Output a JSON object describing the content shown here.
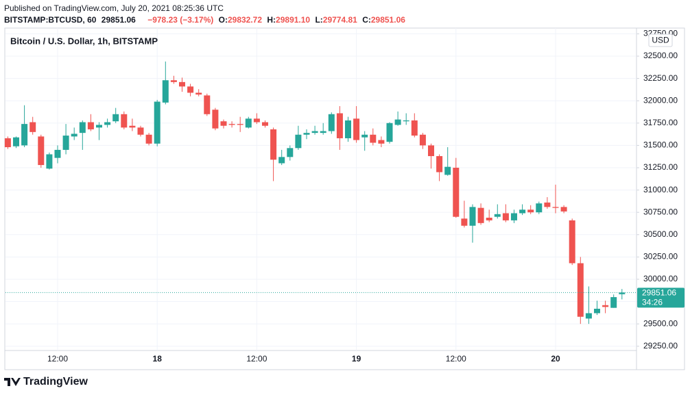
{
  "header": {
    "published": "Published on TradingView.com, July 20, 2021 08:25:36 UTC",
    "symbol": "BITSTAMP:BTCUSD, 60",
    "last": "29851.06",
    "change": "−978.23 (−3.17%)",
    "open_label": "O:",
    "open": "29832.72",
    "high_label": "H:",
    "high": "29891.10",
    "low_label": "L:",
    "low": "29774.81",
    "close_label": "C:",
    "close": "29851.06"
  },
  "footer": {
    "brand": "TradingView"
  },
  "chart_data": {
    "type": "candlestick",
    "title": "Bitcoin / U.S. Dollar, 1h, BITSTAMP",
    "currency": "USD",
    "up_color": "#26a69a",
    "down_color": "#ef5350",
    "grid": true,
    "last_price": 29851.06,
    "countdown": "34:26",
    "categories": [
      null,
      null,
      null,
      null,
      null,
      null,
      "12:00",
      null,
      null,
      null,
      null,
      null,
      null,
      null,
      null,
      null,
      null,
      null,
      "18",
      null,
      null,
      null,
      null,
      null,
      null,
      null,
      null,
      null,
      null,
      null,
      "12:00",
      null,
      null,
      null,
      null,
      null,
      null,
      null,
      null,
      null,
      null,
      null,
      "19",
      null,
      null,
      null,
      null,
      null,
      null,
      null,
      null,
      null,
      null,
      null,
      "12:00",
      null,
      null,
      null,
      null,
      null,
      null,
      null,
      null,
      null,
      null,
      null,
      "20",
      null,
      null,
      null,
      null,
      null,
      null,
      null,
      null
    ],
    "open": [
      31580,
      31490,
      31500,
      31760,
      31600,
      31240,
      31360,
      31450,
      31600,
      31640,
      31760,
      31700,
      31730,
      31770,
      31850,
      31720,
      31700,
      31620,
      31520,
      31980,
      32230,
      32210,
      32160,
      32090,
      32060,
      31900,
      31770,
      31740,
      31740,
      31700,
      31800,
      31760,
      31680,
      31300,
      31370,
      31470,
      31620,
      31640,
      31640,
      31660,
      31860,
      31580,
      31800,
      31590,
      31620,
      31560,
      31540,
      31730,
      31770,
      31780,
      31620,
      31500,
      31380,
      31170,
      31250,
      30680,
      30600,
      30800,
      30690,
      30700,
      30740,
      30660,
      30740,
      30780,
      30750,
      30860,
      30810,
      30810,
      30660,
      30180,
      29560,
      29620,
      29710,
      29680,
      29832.72
    ],
    "high": [
      31600,
      31600,
      31950,
      31820,
      31620,
      31420,
      31500,
      31740,
      31700,
      31780,
      31850,
      31760,
      31800,
      31920,
      31880,
      31800,
      31720,
      31640,
      32010,
      32440,
      32280,
      32260,
      32190,
      32130,
      32080,
      31920,
      31790,
      31770,
      31820,
      31820,
      31860,
      31780,
      31700,
      31450,
      31500,
      31720,
      31680,
      31720,
      31750,
      31870,
      31940,
      31820,
      31940,
      31660,
      31690,
      31600,
      31760,
      31880,
      31860,
      31860,
      31640,
      31520,
      31400,
      31480,
      31360,
      30880,
      30840,
      30850,
      30780,
      30840,
      30840,
      30780,
      30840,
      30830,
      30870,
      30920,
      31060,
      30830,
      30680,
      30250,
      29920,
      29760,
      29760,
      29830,
      29891.1
    ],
    "low": [
      31460,
      31470,
      31480,
      31620,
      31250,
      31230,
      31300,
      31400,
      31560,
      31450,
      31660,
      31560,
      31700,
      31750,
      31680,
      31660,
      31600,
      31500,
      31490,
      31960,
      32190,
      32100,
      32050,
      32050,
      31830,
      31670,
      31690,
      31700,
      31650,
      31690,
      31740,
      31700,
      31100,
      31280,
      31330,
      31450,
      31570,
      31620,
      31620,
      31630,
      31450,
      31540,
      31530,
      31440,
      31500,
      31480,
      31520,
      31720,
      31730,
      31590,
      31460,
      31240,
      31100,
      31160,
      30690,
      30580,
      30410,
      30610,
      30640,
      30680,
      30640,
      30630,
      30720,
      30730,
      30730,
      30790,
      30740,
      30740,
      30160,
      29500,
      29500,
      29600,
      29620,
      29680,
      29774.81
    ],
    "close": [
      31480,
      31590,
      31740,
      31650,
      31280,
      31400,
      31450,
      31610,
      31630,
      31760,
      31680,
      31730,
      31760,
      31850,
      31700,
      31700,
      31620,
      31520,
      31990,
      32230,
      32210,
      32160,
      32090,
      32070,
      31850,
      31690,
      31720,
      31730,
      31730,
      31800,
      31760,
      31720,
      31340,
      31370,
      31470,
      31620,
      31640,
      31660,
      31660,
      31850,
      31580,
      31780,
      31560,
      31620,
      31530,
      31520,
      31750,
      31790,
      31780,
      31610,
      31500,
      31380,
      31200,
      31260,
      30700,
      30600,
      30810,
      30630,
      30660,
      30730,
      30660,
      30740,
      30780,
      30750,
      30850,
      30810,
      30800,
      30760,
      30180,
      29580,
      29620,
      29670,
      29690,
      29800,
      29851.06
    ],
    "ylim": [
      29202,
      32807
    ],
    "yticks": [
      {
        "value": 29250,
        "label": "29250.00"
      },
      {
        "value": 29500,
        "label": "29500.00"
      },
      {
        "value": 29750,
        "label": "29750.00"
      },
      {
        "value": 30000,
        "label": "30000.00"
      },
      {
        "value": 30250,
        "label": "30250.00"
      },
      {
        "value": 30500,
        "label": "30500.00"
      },
      {
        "value": 30750,
        "label": "30750.00"
      },
      {
        "value": 31000,
        "label": "31000.00"
      },
      {
        "value": 31250,
        "label": "31250.00"
      },
      {
        "value": 31500,
        "label": "31500.00"
      },
      {
        "value": 31750,
        "label": "31750.00"
      },
      {
        "value": 32000,
        "label": "32000.00"
      },
      {
        "value": 32250,
        "label": "32250.00"
      },
      {
        "value": 32500,
        "label": "32500.00"
      },
      {
        "value": 32750,
        "label": "32750.00"
      }
    ]
  }
}
